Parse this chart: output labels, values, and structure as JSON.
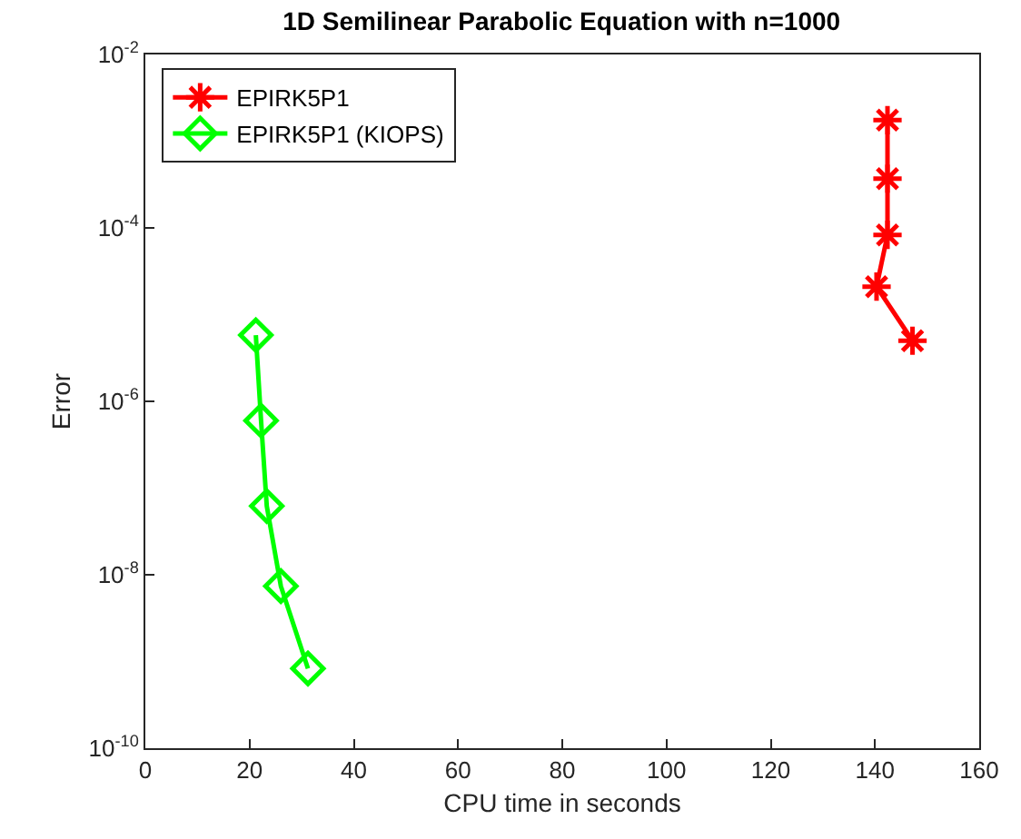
{
  "chart_data": {
    "type": "line",
    "title": "1D Semilinear Parabolic Equation with n=1000",
    "xlabel": "CPU time in seconds",
    "ylabel": "Error",
    "series": [
      {
        "name": "EPIRK5P1",
        "color": "#ff0000",
        "marker": "cross",
        "x": [
          142.4,
          142.4,
          142.4,
          140.3,
          147.2
        ],
        "values": [
          0.00175,
          0.00037,
          8.3e-05,
          2.1e-05,
          5e-06
        ]
      },
      {
        "name": "EPIRK5P1 (KIOPS)",
        "color": "#00ff00",
        "marker": "diamond",
        "x": [
          21.2,
          22.2,
          23.3,
          26,
          31.2
        ],
        "values": [
          5.8e-06,
          6e-07,
          6.2e-08,
          7.4e-09,
          8.3e-10
        ]
      }
    ],
    "log": "y",
    "xlim": [
      0,
      160
    ],
    "xticks": [
      0,
      20,
      40,
      60,
      80,
      100,
      120,
      140,
      160
    ],
    "ylim": [
      1e-10,
      0.01
    ],
    "yticks": [
      {
        "value": 1e-10,
        "label": "10$^{-10}$"
      },
      {
        "value": 1e-08,
        "label": "10$^{-8}$"
      },
      {
        "value": 1e-06,
        "label": "10$^{-6}$"
      },
      {
        "value": 0.0001,
        "label": "10$^{-4}$"
      },
      {
        "value": 0.01,
        "label": "10$^{-2}$"
      }
    ],
    "legend": "top left",
    "grid": false,
    "line_style": "solid"
  }
}
